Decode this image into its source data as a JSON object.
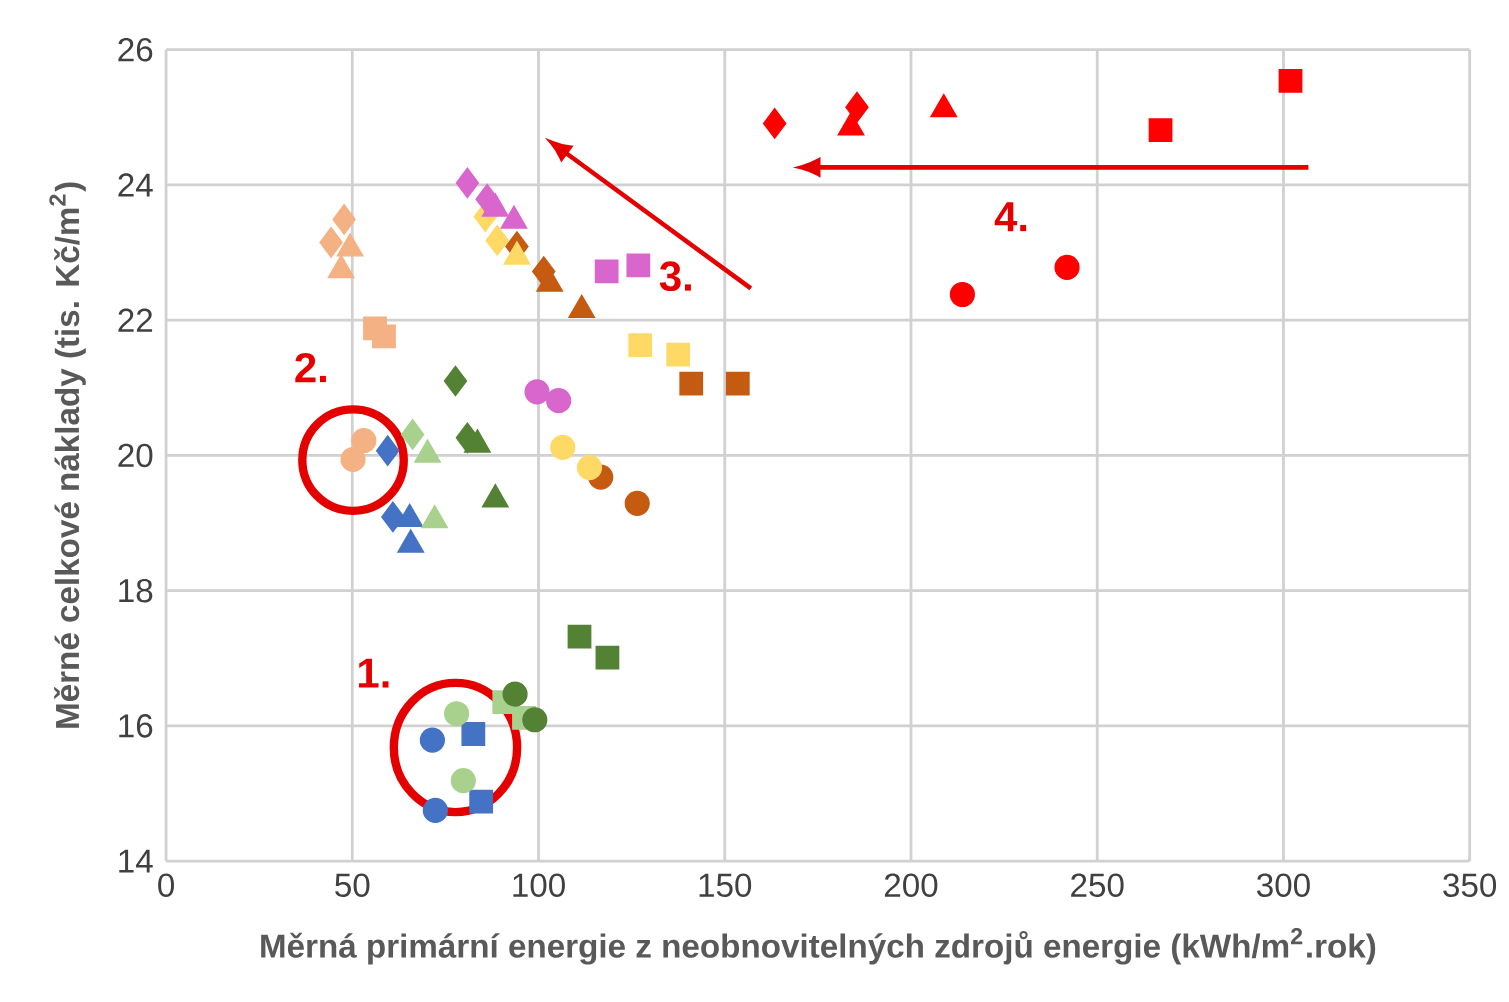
{
  "chart_data": {
    "type": "scatter",
    "xlabel": "Měrná primární energie z neobnovitelných zdrojů energie (kWh/m$^{2}$.rok)",
    "ylabel": "Měrné celkové náklady (tis. Kč/m$^{2}$)",
    "xlim": [
      0,
      350
    ],
    "ylim": [
      14,
      26
    ],
    "xticks": [
      0,
      50,
      100,
      150,
      200,
      250,
      300,
      350
    ],
    "yticks": [
      14,
      16,
      18,
      20,
      22,
      24,
      26
    ],
    "grid": true,
    "series": [
      {
        "color": "#ff0000",
        "marker": "diamond",
        "x": [
          163.4,
          185.5
        ],
        "values": [
          24.91,
          25.15
        ]
      },
      {
        "color": "#ff0000",
        "marker": "triangle",
        "x": [
          183.9,
          208.8
        ],
        "values": [
          24.85,
          25.12
        ]
      },
      {
        "color": "#ff0000",
        "marker": "square",
        "x": [
          267,
          301.9
        ],
        "values": [
          24.81,
          25.54
        ]
      },
      {
        "color": "#ff0000",
        "marker": "circle",
        "x": [
          213.8,
          241.9
        ],
        "values": [
          22.38,
          22.78
        ]
      },
      {
        "color": "#4472c4",
        "marker": "circle",
        "x": [
          71.5,
          72.3
        ],
        "values": [
          15.79,
          14.75
        ]
      },
      {
        "color": "#4472c4",
        "marker": "square",
        "x": [
          82.5,
          84.6
        ],
        "values": [
          15.88,
          14.88
        ]
      },
      {
        "color": "#4472c4",
        "marker": "diamond",
        "x": [
          59.5,
          60.9
        ],
        "values": [
          20.07,
          19.09
        ]
      },
      {
        "color": "#4472c4",
        "marker": "triangle",
        "x": [
          65.4,
          65.7
        ],
        "values": [
          19.06,
          18.68
        ]
      },
      {
        "color": "#a9d18e",
        "marker": "circle",
        "x": [
          78,
          79.8
        ],
        "values": [
          16.18,
          15.19
        ]
      },
      {
        "color": "#a9d18e",
        "marker": "square",
        "x": [
          90.8,
          96.1
        ],
        "values": [
          16.35,
          16.12
        ]
      },
      {
        "color": "#a9d18e",
        "marker": "diamond",
        "x": [
          66.2
        ],
        "values": [
          20.31
        ]
      },
      {
        "color": "#a9d18e",
        "marker": "triangle",
        "x": [
          70.2,
          72.1
        ],
        "values": [
          20.01,
          19.04
        ]
      },
      {
        "color": "#548235",
        "marker": "circle",
        "x": [
          93.7,
          99
        ],
        "values": [
          16.47,
          16.09
        ]
      },
      {
        "color": "#548235",
        "marker": "square",
        "x": [
          111,
          118.5
        ],
        "values": [
          17.32,
          17.01
        ]
      },
      {
        "color": "#548235",
        "marker": "diamond",
        "x": [
          77.7,
          80.9
        ],
        "values": [
          21.1,
          20.26
        ]
      },
      {
        "color": "#548235",
        "marker": "triangle",
        "x": [
          83.6,
          88.4
        ],
        "values": [
          20.16,
          19.35
        ]
      },
      {
        "color": "#f4b183",
        "marker": "circle",
        "x": [
          53.1,
          50.2
        ],
        "values": [
          20.22,
          19.94
        ]
      },
      {
        "color": "#f4b183",
        "marker": "square",
        "x": [
          58.5,
          56.1
        ],
        "values": [
          21.76,
          21.88
        ]
      },
      {
        "color": "#f4b183",
        "marker": "diamond",
        "x": [
          47.8,
          44.3
        ],
        "values": [
          23.49,
          23.15
        ]
      },
      {
        "color": "#f4b183",
        "marker": "triangle",
        "x": [
          49.4,
          47
        ],
        "values": [
          23.06,
          22.74
        ]
      },
      {
        "color": "#c55a11",
        "marker": "circle",
        "x": [
          116.7,
          126.5
        ],
        "values": [
          19.68,
          19.29
        ]
      },
      {
        "color": "#c55a11",
        "marker": "square",
        "x": [
          141,
          153.5
        ],
        "values": [
          21.06,
          21.06
        ]
      },
      {
        "color": "#c55a11",
        "marker": "diamond",
        "x": [
          94.2,
          101.4
        ],
        "values": [
          23.09,
          22.72
        ]
      },
      {
        "color": "#c55a11",
        "marker": "triangle",
        "x": [
          103,
          111.6
        ],
        "values": [
          22.54,
          22.15
        ]
      },
      {
        "color": "#ffd966",
        "marker": "circle",
        "x": [
          106.5,
          113.7
        ],
        "values": [
          20.12,
          19.82
        ]
      },
      {
        "color": "#ffd966",
        "marker": "square",
        "x": [
          127.3,
          137.5
        ],
        "values": [
          21.63,
          21.49
        ]
      },
      {
        "color": "#ffd966",
        "marker": "diamond",
        "x": [
          85.7,
          88.9
        ],
        "values": [
          23.53,
          23.18
        ]
      },
      {
        "color": "#ffd966",
        "marker": "triangle",
        "x": [
          94.2
        ],
        "values": [
          22.94
        ]
      },
      {
        "color": "#d966cc",
        "marker": "circle",
        "x": [
          99.6,
          105.4
        ],
        "values": [
          20.94,
          20.81
        ]
      },
      {
        "color": "#d966cc",
        "marker": "square",
        "x": [
          118.3,
          126.8
        ],
        "values": [
          22.72,
          22.81
        ]
      },
      {
        "color": "#d966cc",
        "marker": "diamond",
        "x": [
          80.9,
          86.2
        ],
        "values": [
          24.03,
          23.79
        ]
      },
      {
        "color": "#d966cc",
        "marker": "triangle",
        "x": [
          88.4,
          93.4
        ],
        "values": [
          23.65,
          23.47
        ]
      }
    ],
    "annotations": [
      "1.",
      "2.",
      "3.",
      "4."
    ]
  }
}
